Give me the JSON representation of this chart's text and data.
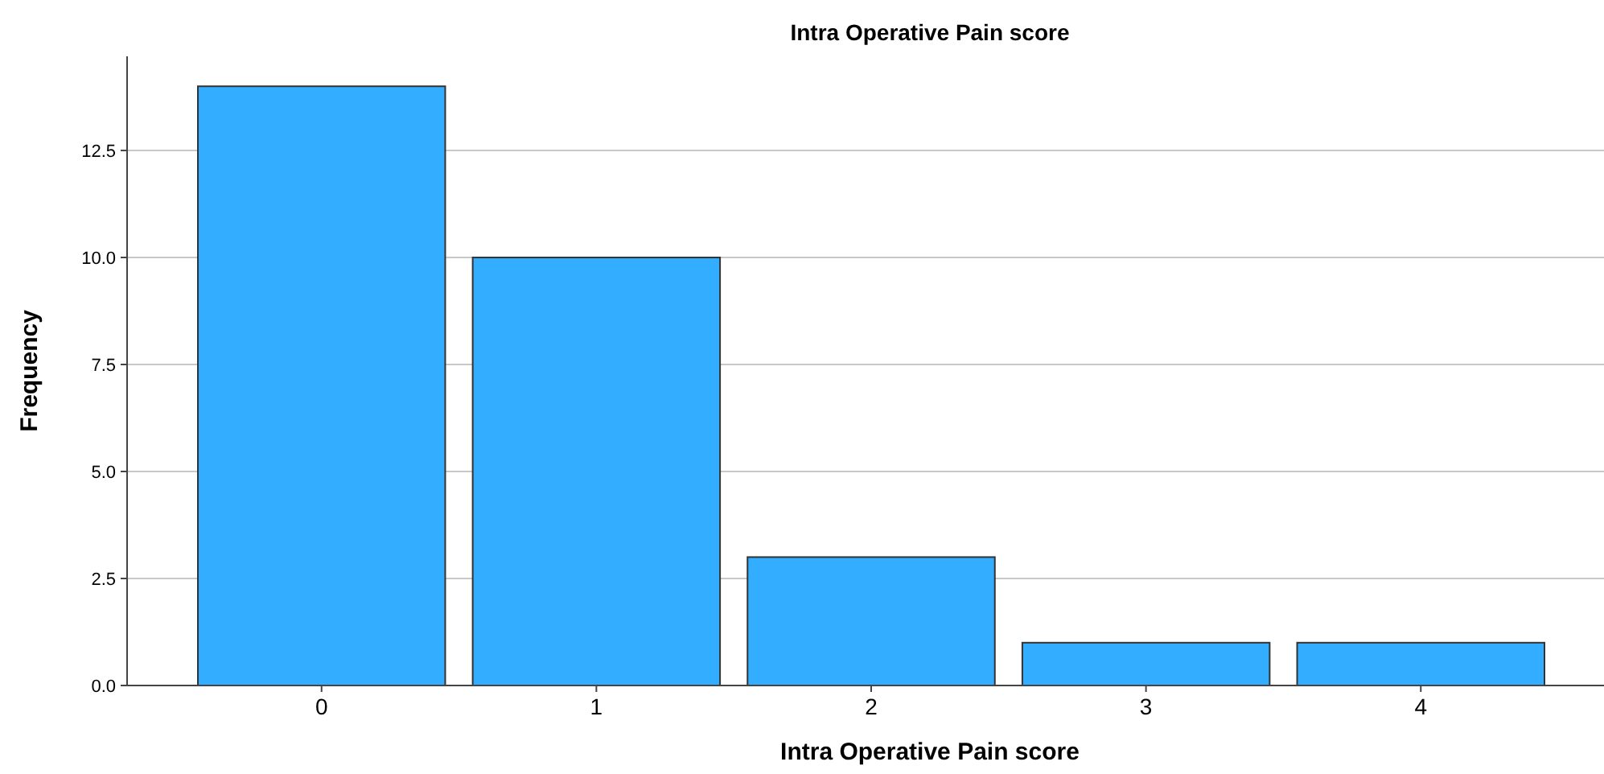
{
  "chart_data": {
    "type": "bar",
    "title": "Intra Operative Pain score",
    "xlabel": "Intra Operative Pain score",
    "ylabel": "Frequency",
    "categories": [
      "0",
      "1",
      "2",
      "3",
      "4"
    ],
    "values": [
      14,
      10,
      3,
      1,
      1
    ],
    "color": "#33adff",
    "ylim": [
      0,
      14.7
    ],
    "yticks": [
      {
        "value": 0,
        "label": "0.0"
      },
      {
        "value": 2.5,
        "label": "2.5"
      },
      {
        "value": 5,
        "label": "5.0"
      },
      {
        "value": 7.5,
        "label": "7.5"
      },
      {
        "value": 10,
        "label": "10.0"
      },
      {
        "value": 12.5,
        "label": "12.5"
      }
    ],
    "grid": "y"
  }
}
